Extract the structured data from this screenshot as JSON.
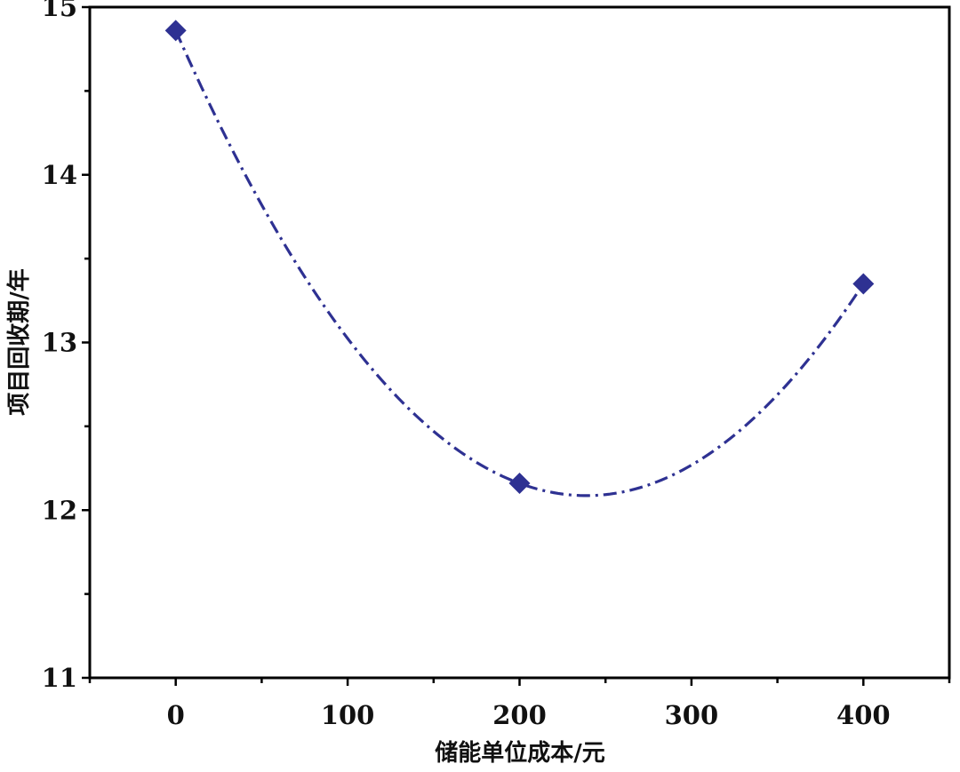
{
  "chart_data": {
    "type": "line",
    "xlabel": "储能单位成本/元",
    "ylabel": "项目回收期/年",
    "x": [
      0,
      200,
      400
    ],
    "series": [
      {
        "values": [
          14.86,
          12.16,
          13.35
        ],
        "color": "#2e3192"
      }
    ],
    "xlim": [
      -50,
      450
    ],
    "ylim": [
      11,
      15
    ],
    "xticks": [
      0,
      100,
      200,
      300,
      400
    ],
    "yticks": [
      11,
      12,
      13,
      14,
      15
    ],
    "grid": false
  }
}
